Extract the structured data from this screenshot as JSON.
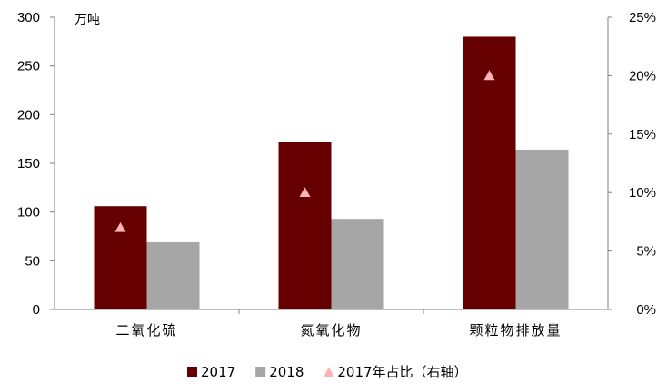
{
  "chart_data": {
    "type": "bar",
    "y_unit_label": "万吨",
    "categories": [
      "二氧化硫",
      "氮氧化物",
      "颗粒物排放量"
    ],
    "series": [
      {
        "name": "2017",
        "kind": "bar",
        "axis": "left",
        "color": "#660000",
        "values": [
          106,
          172,
          280
        ]
      },
      {
        "name": "2018",
        "kind": "bar",
        "axis": "left",
        "color": "#A6A6A6",
        "values": [
          69,
          93,
          164
        ]
      },
      {
        "name": "2017年占比（右轴）",
        "kind": "marker",
        "marker": "triangle",
        "axis": "right",
        "color": "#FFB3B3",
        "values": [
          7,
          10,
          20
        ]
      }
    ],
    "left_axis": {
      "min": 0,
      "max": 300,
      "ticks": [
        0,
        50,
        100,
        150,
        200,
        250,
        300
      ]
    },
    "right_axis": {
      "min": 0,
      "max": 25,
      "ticks": [
        0,
        5,
        10,
        15,
        20,
        25
      ],
      "format": "percent"
    },
    "grid": false,
    "legend_position": "bottom"
  }
}
